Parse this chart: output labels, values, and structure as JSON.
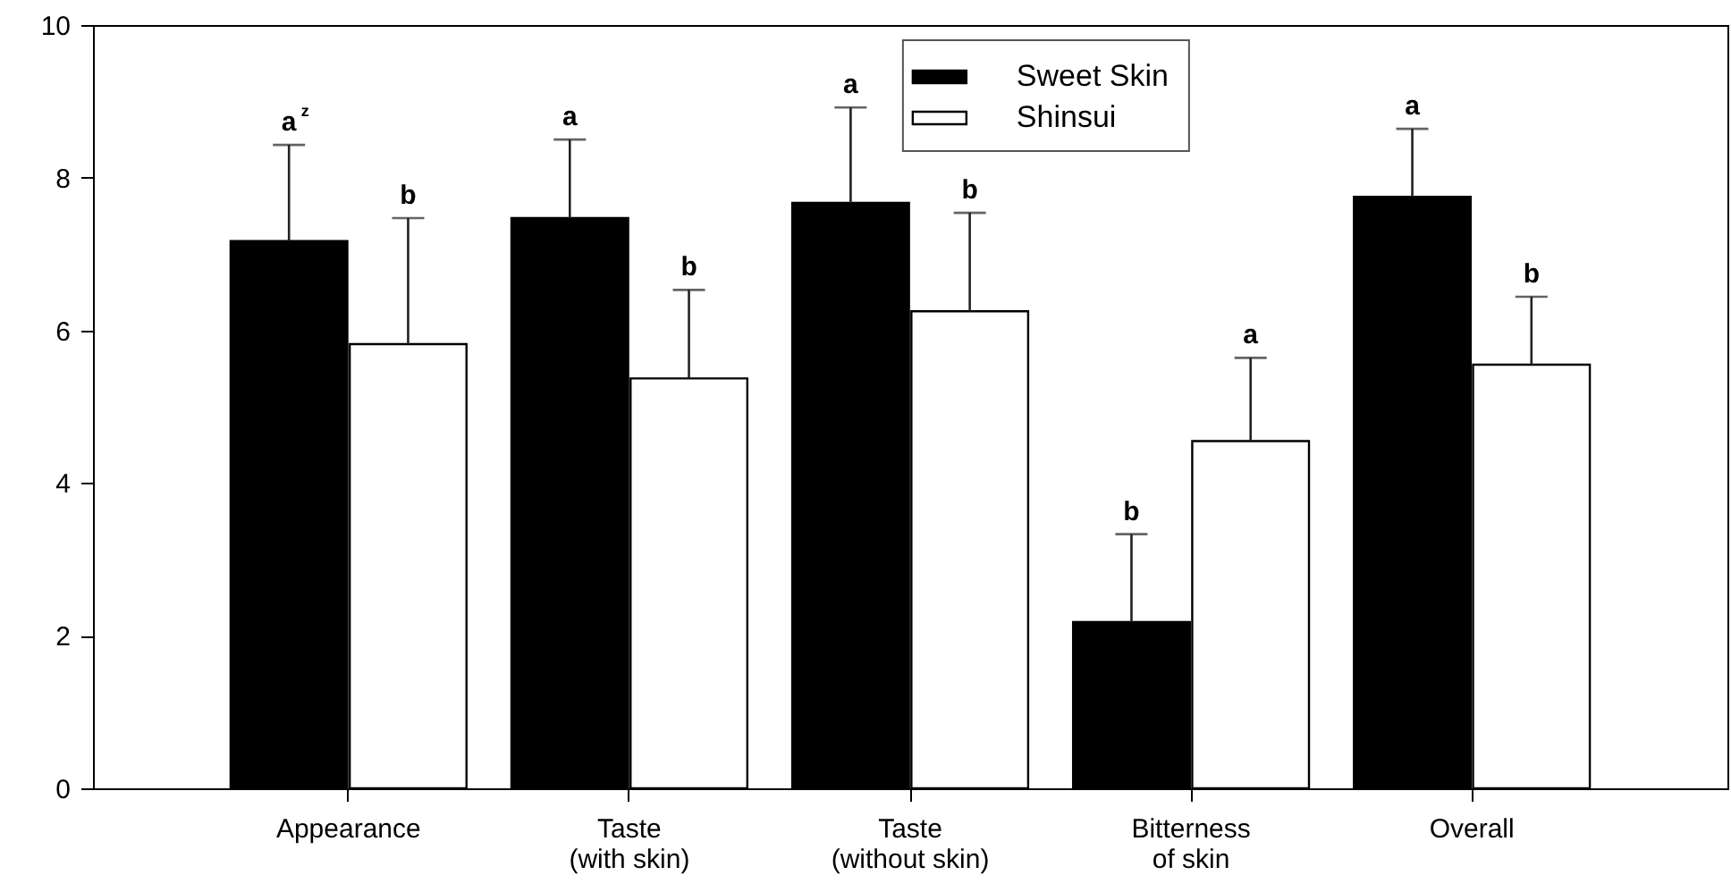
{
  "chart_data": {
    "type": "bar",
    "categories": [
      "Appearance",
      "Taste\n(with skin)",
      "Taste\n(without skin)",
      "Bitterness\nof skin",
      "Overall"
    ],
    "series": [
      {
        "name": "Sweet Skin",
        "color": "#000000",
        "values": [
          7.17,
          7.47,
          7.67,
          2.18,
          7.75
        ],
        "errors": [
          [
            7.17,
            8.43
          ],
          [
            7.47,
            8.5
          ],
          [
            7.67,
            8.92
          ],
          [
            2.18,
            3.33
          ],
          [
            7.75,
            8.64
          ]
        ]
      },
      {
        "name": "Shinsui",
        "color": "#ffffff",
        "values": [
          5.82,
          5.37,
          6.25,
          4.55,
          5.55
        ],
        "errors": [
          [
            5.82,
            7.47
          ],
          [
            5.37,
            6.53
          ],
          [
            6.25,
            7.54
          ],
          [
            4.55,
            5.64
          ],
          [
            5.55,
            6.44
          ]
        ]
      }
    ],
    "annotations": [
      "a$^{z}$",
      "b",
      "a",
      "b",
      "a",
      "b",
      "b",
      "a",
      "a",
      "b"
    ],
    "ylim": [
      0,
      10
    ],
    "yticks": [
      0,
      2,
      4,
      6,
      8,
      10
    ],
    "legend": "top",
    "grid": false
  }
}
